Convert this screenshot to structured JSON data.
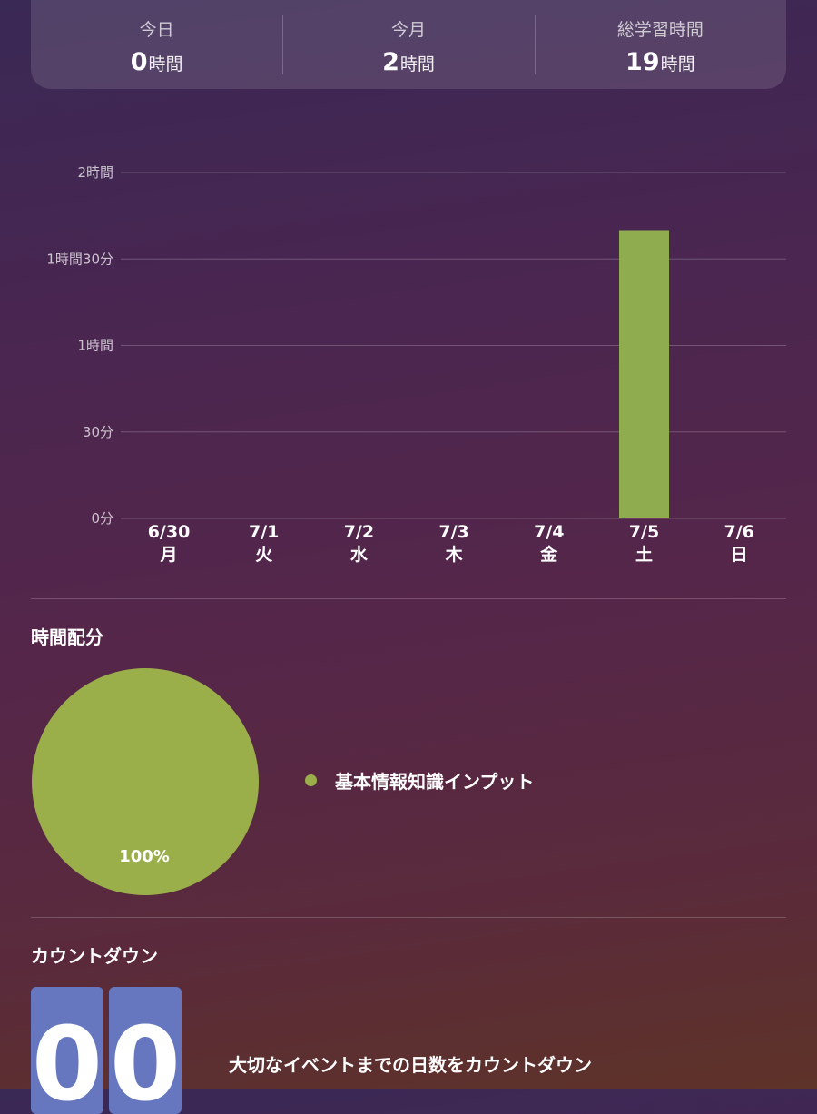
{
  "summary": [
    {
      "label": "今日",
      "value": "0",
      "unit": "時間"
    },
    {
      "label": "今月",
      "value": "2",
      "unit": "時間"
    },
    {
      "label": "総学習時間",
      "value": "19",
      "unit": "時間"
    }
  ],
  "chart_data": [
    {
      "type": "bar",
      "categories": [
        "6/30 月",
        "7/1 火",
        "7/2 水",
        "7/3 木",
        "7/4 金",
        "7/5 土",
        "7/6 日"
      ],
      "dates": [
        "6/30",
        "7/1",
        "7/2",
        "7/3",
        "7/4",
        "7/5",
        "7/6"
      ],
      "weekdays": [
        "月",
        "火",
        "水",
        "木",
        "金",
        "土",
        "日"
      ],
      "values": [
        0,
        0,
        0,
        0,
        0,
        100,
        0
      ],
      "y_unit": "minutes",
      "ylim": [
        0,
        120
      ],
      "y_ticks": [
        0,
        30,
        60,
        90,
        120
      ],
      "y_tick_labels": [
        "0分",
        "30分",
        "1時間",
        "1時間30分",
        "2時間"
      ],
      "grid": true,
      "color": "#8fad4f"
    },
    {
      "type": "pie",
      "slices": [
        {
          "label": "基本情報知識インプット",
          "value": 100,
          "display": "100%"
        }
      ],
      "color": "#9aae4a",
      "legend_placement": "right"
    }
  ],
  "sections": {
    "allocation_title": "時間配分",
    "countdown_title": "カウントダウン"
  },
  "countdown": {
    "digits": [
      "0",
      "0"
    ],
    "description": "大切なイベントまでの日数をカウントダウン",
    "tile_color": "#6677bf"
  }
}
